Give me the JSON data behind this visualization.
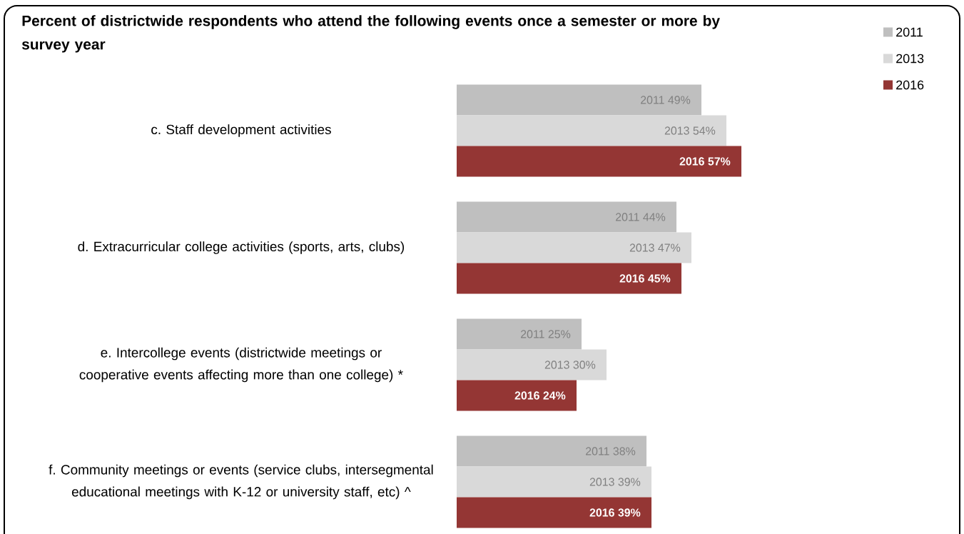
{
  "chart_data": {
    "type": "bar",
    "orientation": "horizontal",
    "title": "Percent of districtwide respondents who attend the following events once a semester or more by survey year",
    "categories": [
      "c. Staff development activities",
      "d. Extracurricular college activities (sports, arts, clubs)",
      "e. Intercollege events (districtwide meetings or cooperative events affecting more than one college) *",
      "f. Community meetings or events (service clubs, intersegmental educational meetings with K-12 or university staff, etc) ^"
    ],
    "series": [
      {
        "name": "2011",
        "color": "#bfbfbf",
        "values": [
          49,
          44,
          25,
          38
        ],
        "value_labels": [
          "2011 49%",
          "2011 44%",
          "2011 25%",
          "2011 38%"
        ]
      },
      {
        "name": "2013",
        "color": "#d9d9d9",
        "values": [
          54,
          47,
          30,
          39
        ],
        "value_labels": [
          "2013 54%",
          "2013 47%",
          "2013 30%",
          "2013 39%"
        ]
      },
      {
        "name": "2016",
        "color": "#943634",
        "values": [
          57,
          45,
          24,
          39
        ],
        "value_labels": [
          "2016 57%",
          "2016 45%",
          "2016 24%",
          "2016 39%"
        ]
      }
    ],
    "legend": "top right"
  }
}
